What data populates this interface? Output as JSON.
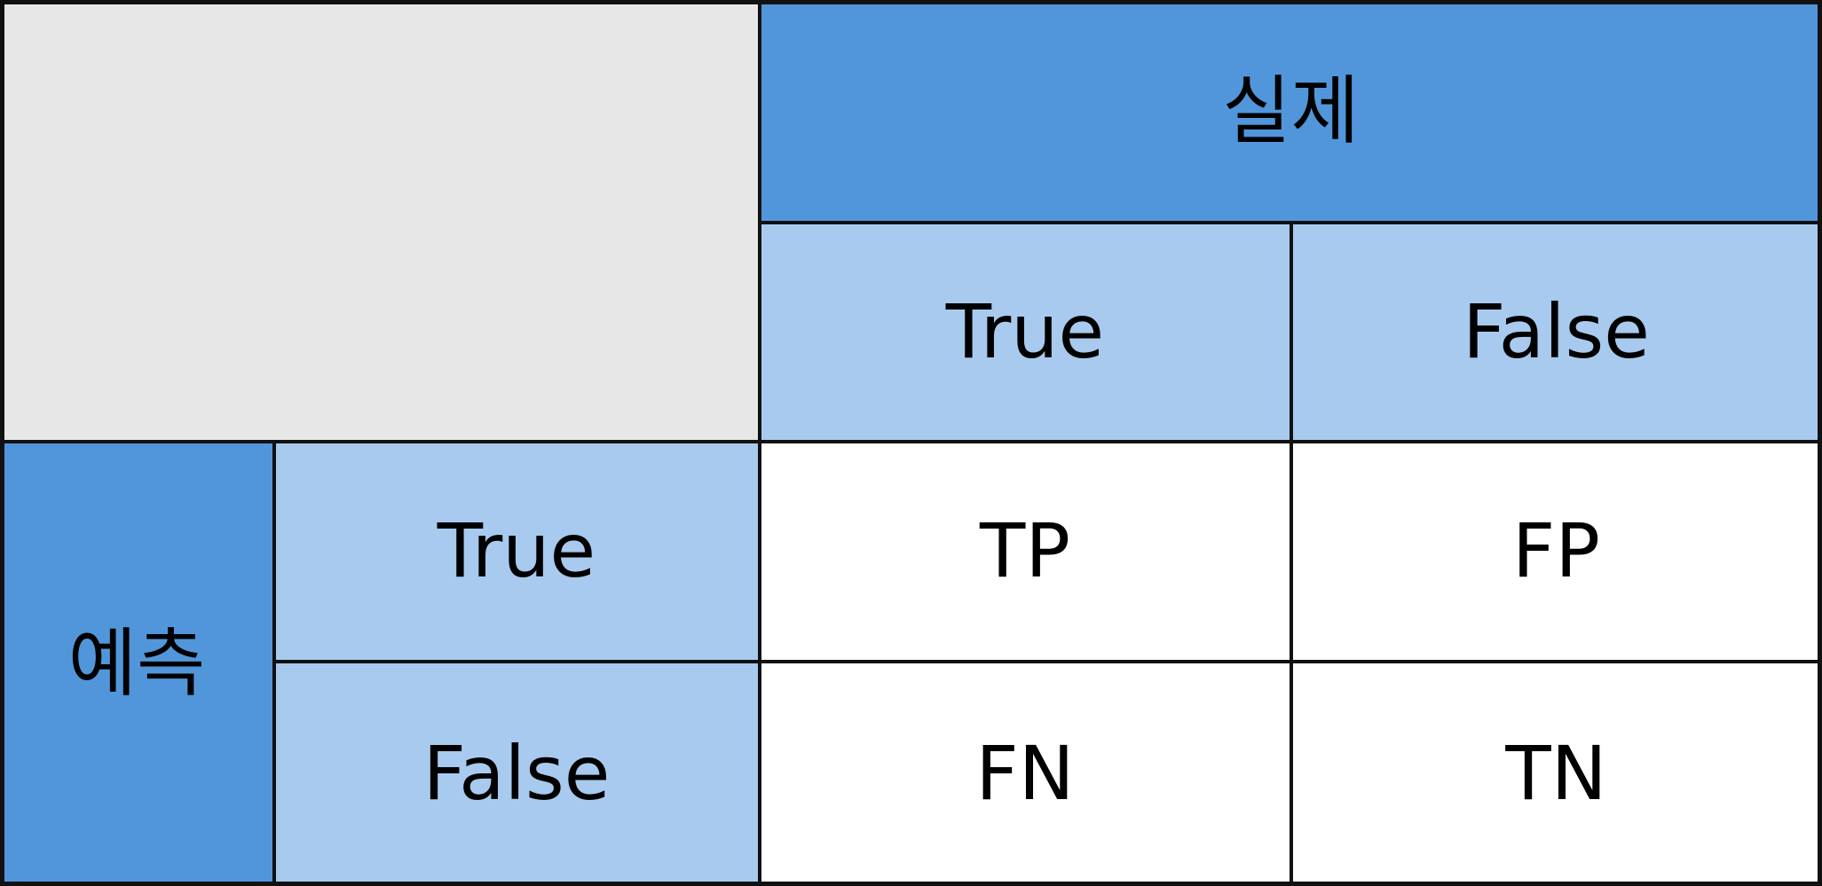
{
  "matrix": {
    "actual_label": "실제",
    "predicted_label": "예측",
    "columns": [
      "True",
      "False"
    ],
    "rows": [
      "True",
      "False"
    ],
    "cells": [
      [
        "TP",
        "FP"
      ],
      [
        "FN",
        "TN"
      ]
    ]
  },
  "colors": {
    "corner": "#e7e7e7",
    "header_dark": "#5196db",
    "header_light": "#a8caee",
    "cell_background": "#ffffff",
    "border": "#111111"
  }
}
